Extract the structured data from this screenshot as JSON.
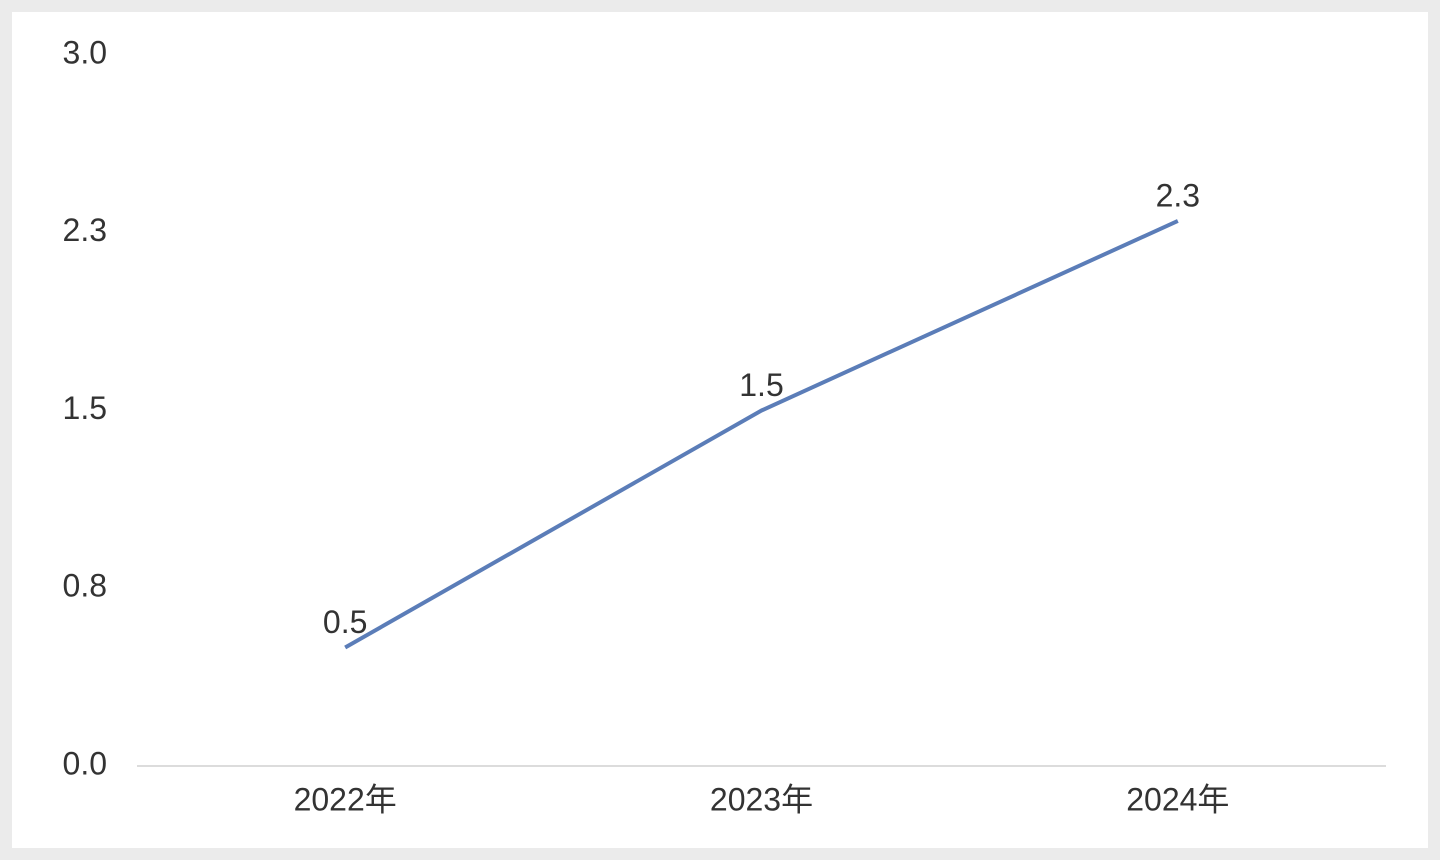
{
  "chart_data": {
    "type": "line",
    "categories": [
      "2022年",
      "2023年",
      "2024年"
    ],
    "series": [
      {
        "name": "values",
        "color": "#5b7db8",
        "values": [
          0.5,
          1.5,
          2.3
        ]
      }
    ],
    "ylim": [
      0,
      3
    ],
    "yticks": [
      {
        "value": 0,
        "label": "0.0"
      },
      {
        "value": 0.75,
        "label": "0.8"
      },
      1.5,
      {
        "value": 2.25,
        "label": "2.3"
      },
      {
        "value": 3,
        "label": "3.0"
      }
    ],
    "grid": false,
    "data_labels": true
  }
}
